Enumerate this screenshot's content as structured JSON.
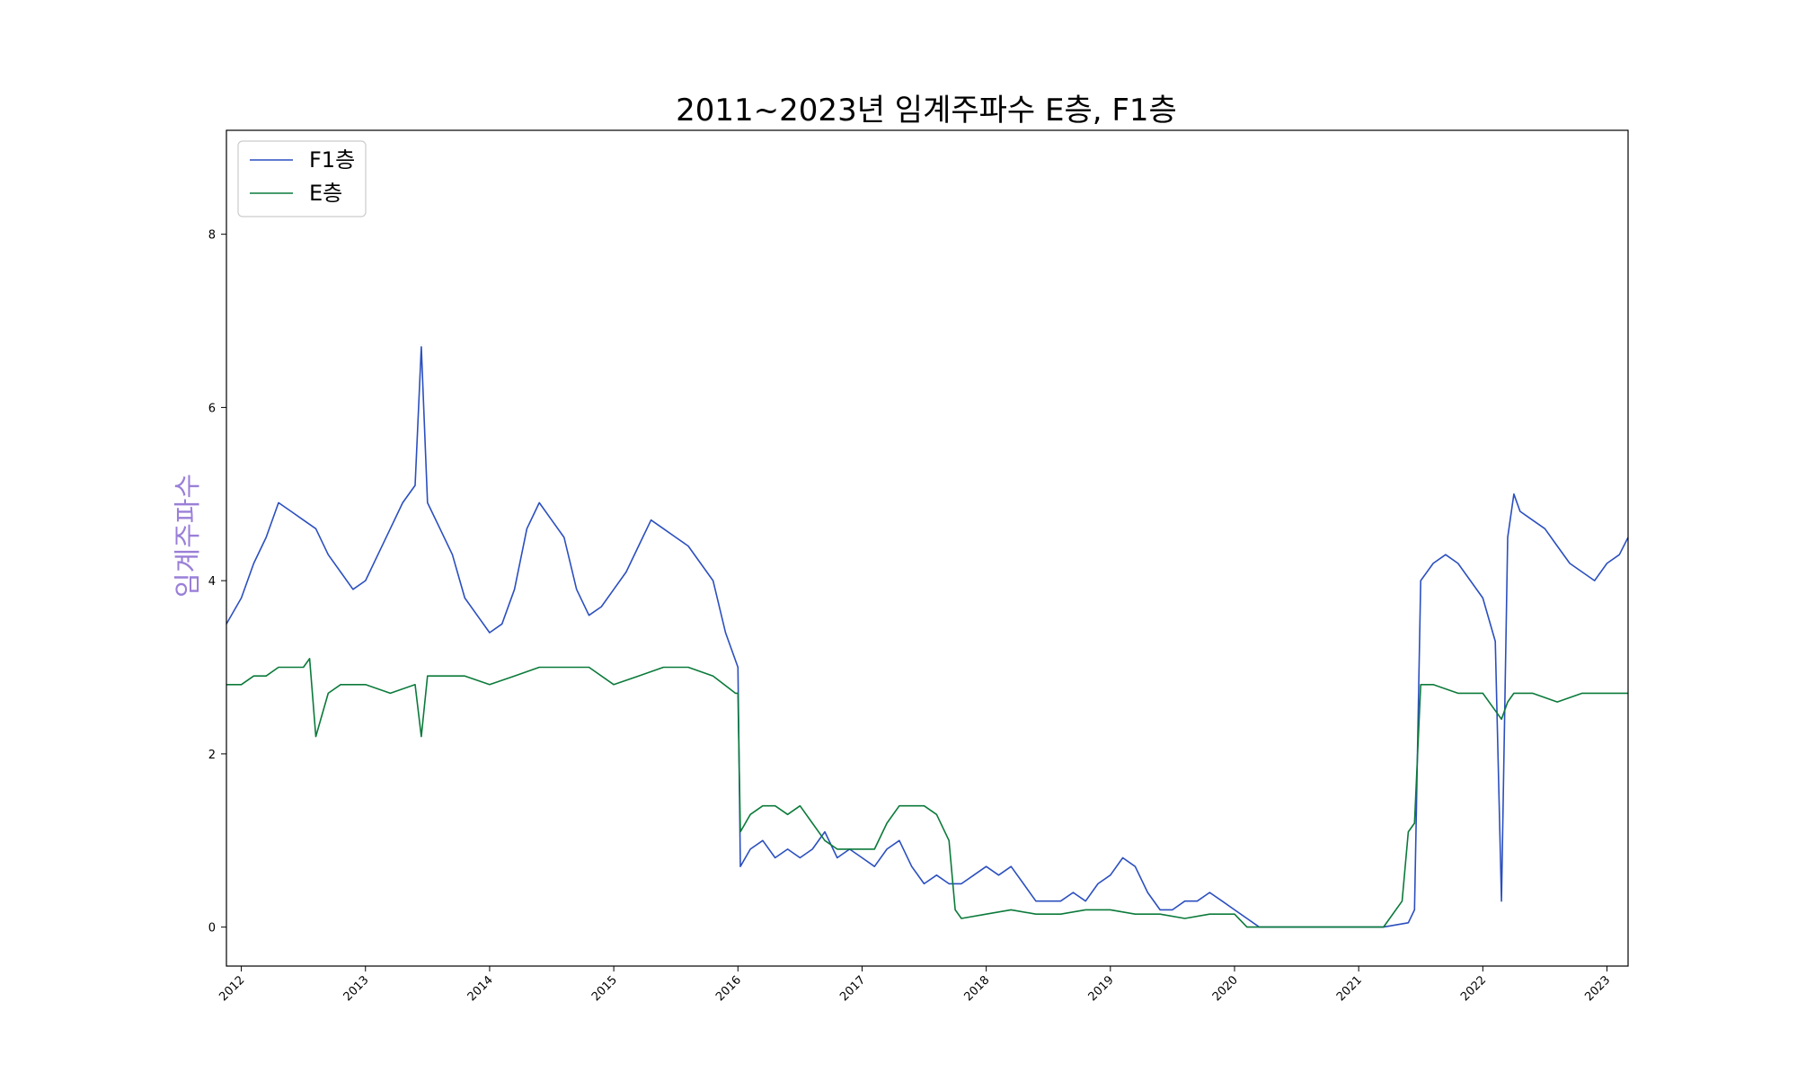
{
  "chart_data": {
    "type": "line",
    "title": "2011~2023년 임계주파수 E층, F1층",
    "xlabel": "",
    "ylabel": "임계주파수",
    "ylabel_color": "#9a7fd8",
    "xlim": [
      2011.88,
      2023.17
    ],
    "ylim": [
      -0.45,
      9.2
    ],
    "xticks": [
      "2012",
      "2013",
      "2014",
      "2015",
      "2016",
      "2017",
      "2018",
      "2019",
      "2020",
      "2021",
      "2022",
      "2023"
    ],
    "yticks": [
      "0",
      "2",
      "4",
      "6",
      "8"
    ],
    "grid": false,
    "legend_position": "upper-left",
    "series": [
      {
        "name": "F1층",
        "color": "#2b4fbf",
        "x": [
          2011.88,
          2012.0,
          2012.1,
          2012.2,
          2012.3,
          2012.4,
          2012.5,
          2012.6,
          2012.7,
          2012.8,
          2012.9,
          2013.0,
          2013.1,
          2013.2,
          2013.3,
          2013.4,
          2013.45,
          2013.5,
          2013.6,
          2013.7,
          2013.8,
          2013.9,
          2014.0,
          2014.1,
          2014.2,
          2014.3,
          2014.4,
          2014.5,
          2014.6,
          2014.7,
          2014.8,
          2014.9,
          2015.0,
          2015.1,
          2015.2,
          2015.3,
          2015.4,
          2015.5,
          2015.6,
          2015.7,
          2015.8,
          2015.9,
          2016.0,
          2016.02,
          2016.1,
          2016.2,
          2016.3,
          2016.4,
          2016.5,
          2016.6,
          2016.7,
          2016.8,
          2016.9,
          2017.0,
          2017.1,
          2017.2,
          2017.3,
          2017.4,
          2017.5,
          2017.6,
          2017.7,
          2017.8,
          2017.9,
          2018.0,
          2018.1,
          2018.2,
          2018.3,
          2018.4,
          2018.5,
          2018.6,
          2018.7,
          2018.8,
          2018.9,
          2019.0,
          2019.1,
          2019.2,
          2019.3,
          2019.4,
          2019.5,
          2019.6,
          2019.7,
          2019.8,
          2019.9,
          2020.0,
          2020.1,
          2020.2,
          2020.5,
          2020.8,
          2021.0,
          2021.2,
          2021.4,
          2021.45,
          2021.5,
          2021.6,
          2021.7,
          2021.8,
          2021.9,
          2022.0,
          2022.1,
          2022.15,
          2022.2,
          2022.25,
          2022.3,
          2022.4,
          2022.5,
          2022.6,
          2022.7,
          2022.8,
          2022.9,
          2023.0,
          2023.1,
          2023.17
        ],
        "values": [
          3.5,
          3.8,
          4.2,
          4.5,
          4.9,
          4.8,
          4.7,
          4.6,
          4.3,
          4.1,
          3.9,
          4.0,
          4.3,
          4.6,
          4.9,
          5.1,
          6.7,
          4.9,
          4.6,
          4.3,
          3.8,
          3.6,
          3.4,
          3.5,
          3.9,
          4.6,
          4.9,
          4.7,
          4.5,
          3.9,
          3.6,
          3.7,
          3.9,
          4.1,
          4.4,
          4.7,
          4.6,
          4.5,
          4.4,
          4.2,
          4.0,
          3.4,
          3.0,
          0.7,
          0.9,
          1.0,
          0.8,
          0.9,
          0.8,
          0.9,
          1.1,
          0.8,
          0.9,
          0.8,
          0.7,
          0.9,
          1.0,
          0.7,
          0.5,
          0.6,
          0.5,
          0.5,
          0.6,
          0.7,
          0.6,
          0.7,
          0.5,
          0.3,
          0.3,
          0.3,
          0.4,
          0.3,
          0.5,
          0.6,
          0.8,
          0.7,
          0.4,
          0.2,
          0.2,
          0.3,
          0.3,
          0.4,
          0.3,
          0.2,
          0.1,
          0.0,
          0.0,
          0.0,
          0.0,
          0.0,
          0.05,
          0.2,
          4.0,
          4.2,
          4.3,
          4.2,
          4.0,
          3.8,
          3.3,
          0.3,
          4.5,
          5.0,
          4.8,
          4.7,
          4.6,
          4.4,
          4.2,
          4.1,
          4.0,
          4.2,
          4.3,
          4.5
        ]
      },
      {
        "name": "E층",
        "color": "#0b7a3a",
        "x": [
          2011.88,
          2012.0,
          2012.1,
          2012.2,
          2012.3,
          2012.4,
          2012.5,
          2012.55,
          2012.6,
          2012.7,
          2012.8,
          2012.9,
          2013.0,
          2013.2,
          2013.4,
          2013.45,
          2013.5,
          2013.6,
          2013.8,
          2014.0,
          2014.2,
          2014.4,
          2014.6,
          2014.8,
          2015.0,
          2015.2,
          2015.4,
          2015.6,
          2015.8,
          2015.98,
          2016.0,
          2016.02,
          2016.1,
          2016.2,
          2016.3,
          2016.4,
          2016.5,
          2016.6,
          2016.7,
          2016.8,
          2016.9,
          2017.0,
          2017.1,
          2017.2,
          2017.3,
          2017.4,
          2017.5,
          2017.6,
          2017.7,
          2017.75,
          2017.8,
          2018.0,
          2018.2,
          2018.4,
          2018.6,
          2018.8,
          2019.0,
          2019.2,
          2019.4,
          2019.6,
          2019.8,
          2020.0,
          2020.1,
          2020.2,
          2020.5,
          2020.8,
          2021.0,
          2021.2,
          2021.35,
          2021.4,
          2021.45,
          2021.5,
          2021.6,
          2021.8,
          2022.0,
          2022.15,
          2022.2,
          2022.25,
          2022.4,
          2022.6,
          2022.8,
          2023.0,
          2023.17
        ],
        "values": [
          2.8,
          2.8,
          2.9,
          2.9,
          3.0,
          3.0,
          3.0,
          3.1,
          2.2,
          2.7,
          2.8,
          2.8,
          2.8,
          2.7,
          2.8,
          2.2,
          2.9,
          2.9,
          2.9,
          2.8,
          2.9,
          3.0,
          3.0,
          3.0,
          2.8,
          2.9,
          3.0,
          3.0,
          2.9,
          2.7,
          2.7,
          1.1,
          1.3,
          1.4,
          1.4,
          1.3,
          1.4,
          1.2,
          1.0,
          0.9,
          0.9,
          0.9,
          0.9,
          1.2,
          1.4,
          1.4,
          1.4,
          1.3,
          1.0,
          0.2,
          0.1,
          0.15,
          0.2,
          0.15,
          0.15,
          0.2,
          0.2,
          0.15,
          0.15,
          0.1,
          0.15,
          0.15,
          0.0,
          0.0,
          0.0,
          0.0,
          0.0,
          0.0,
          0.3,
          1.1,
          1.2,
          2.8,
          2.8,
          2.7,
          2.7,
          2.4,
          2.6,
          2.7,
          2.7,
          2.6,
          2.7,
          2.7,
          2.7
        ]
      }
    ]
  }
}
